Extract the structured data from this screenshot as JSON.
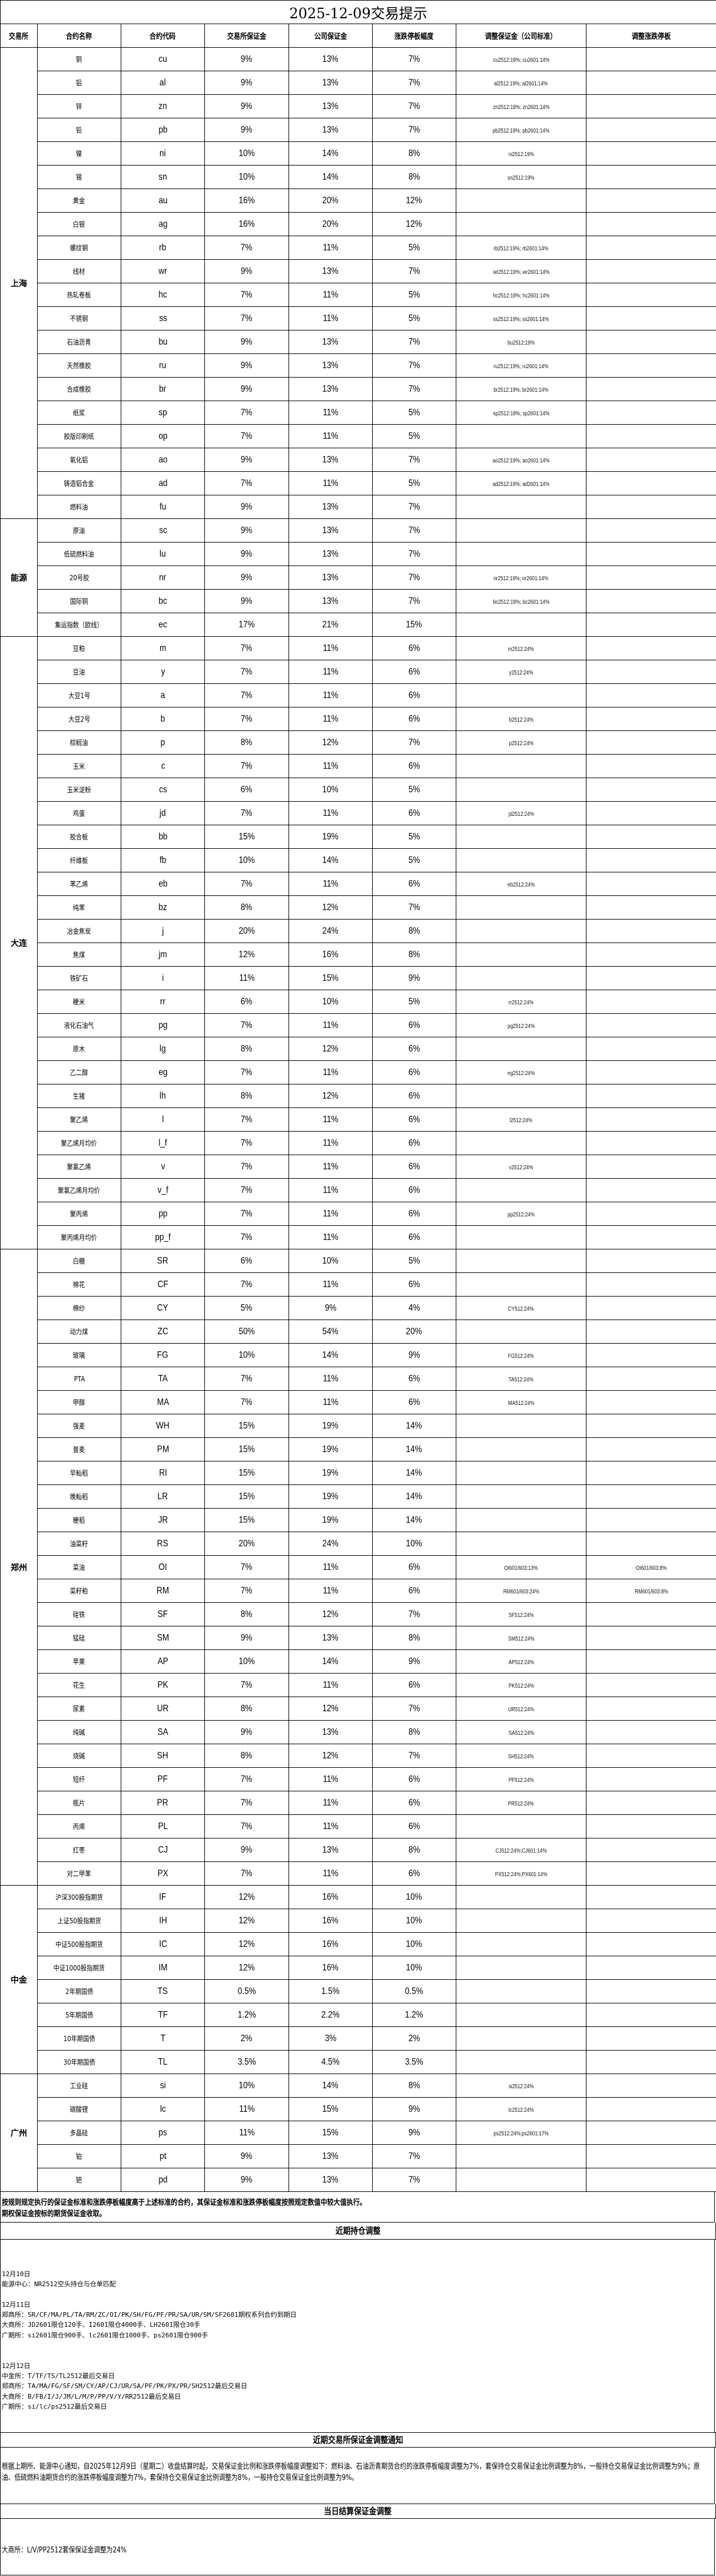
{
  "title": "2025-12-09交易提示",
  "headers": [
    "交易所",
    "合约名称",
    "合约代码",
    "交易所保证金",
    "公司保证金",
    "涨跌停板幅度",
    "调整保证金（公司标准）",
    "调整涨跌停板"
  ],
  "groups": [
    {
      "exchange": "上海",
      "rows": [
        [
          "铜",
          "cu",
          "9%",
          "13%",
          "7%",
          "cu2512:19%; cu2601:14%",
          ""
        ],
        [
          "铝",
          "al",
          "9%",
          "13%",
          "7%",
          "al2512:19%; al2601:14%",
          ""
        ],
        [
          "锌",
          "zn",
          "9%",
          "13%",
          "7%",
          "zn2512:19%; zn2601:14%",
          ""
        ],
        [
          "铅",
          "pb",
          "9%",
          "13%",
          "7%",
          "pb2512:19%; pb2601:14%",
          ""
        ],
        [
          "镍",
          "ni",
          "10%",
          "14%",
          "8%",
          "ni2512:19%",
          ""
        ],
        [
          "锡",
          "sn",
          "10%",
          "14%",
          "8%",
          "sn2512:19%",
          ""
        ],
        [
          "黄金",
          "au",
          "16%",
          "20%",
          "12%",
          "",
          ""
        ],
        [
          "白银",
          "ag",
          "16%",
          "20%",
          "12%",
          "",
          ""
        ],
        [
          "螺纹钢",
          "rb",
          "7%",
          "11%",
          "5%",
          "rb2512:19%; rb2601:14%",
          ""
        ],
        [
          "线材",
          "wr",
          "9%",
          "13%",
          "7%",
          "wr2512:19%; wr2601:14%",
          ""
        ],
        [
          "热轧卷板",
          "hc",
          "7%",
          "11%",
          "5%",
          "hc2512:19%; hc2601:14%",
          ""
        ],
        [
          "不锈钢",
          "ss",
          "7%",
          "11%",
          "5%",
          "ss2512:19%; ss2601:14%",
          ""
        ],
        [
          "石油沥青",
          "bu",
          "9%",
          "13%",
          "7%",
          "bu2512:19%",
          ""
        ],
        [
          "天然橡胶",
          "ru",
          "9%",
          "13%",
          "7%",
          "ru2512:19%; ru2601:14%",
          ""
        ],
        [
          "合成橡胶",
          "br",
          "9%",
          "13%",
          "7%",
          "br2512:19%; br2601:14%",
          ""
        ],
        [
          "纸浆",
          "sp",
          "7%",
          "11%",
          "5%",
          "sp2512:19%; sp2601:14%",
          ""
        ],
        [
          "胶版印刷纸",
          "op",
          "7%",
          "11%",
          "5%",
          "",
          ""
        ],
        [
          "氧化铝",
          "ao",
          "9%",
          "13%",
          "7%",
          "ao2512:19%; ao2601:14%",
          ""
        ],
        [
          "铸造铝合金",
          "ad",
          "7%",
          "11%",
          "5%",
          "ad2512:19%; ad2601:14%",
          ""
        ],
        [
          "燃料油",
          "fu",
          "9%",
          "13%",
          "7%",
          "",
          ""
        ]
      ]
    },
    {
      "exchange": "能源",
      "rows": [
        [
          "原油",
          "sc",
          "9%",
          "13%",
          "7%",
          "",
          ""
        ],
        [
          "低硫燃料油",
          "lu",
          "9%",
          "13%",
          "7%",
          "",
          ""
        ],
        [
          "20号胶",
          "nr",
          "9%",
          "13%",
          "7%",
          "nr2512:19%; nr2601:14%",
          ""
        ],
        [
          "国际铜",
          "bc",
          "9%",
          "13%",
          "7%",
          "bc2512:19%; bc2601:14%",
          ""
        ],
        [
          "集运指数（欧线）",
          "ec",
          "17%",
          "21%",
          "15%",
          "",
          ""
        ]
      ]
    },
    {
      "exchange": "大连",
      "rows": [
        [
          "豆粕",
          "m",
          "7%",
          "11%",
          "6%",
          "m2512:24%",
          ""
        ],
        [
          "豆油",
          "y",
          "7%",
          "11%",
          "6%",
          "y2512:24%",
          ""
        ],
        [
          "大豆1号",
          "a",
          "7%",
          "11%",
          "6%",
          "",
          ""
        ],
        [
          "大豆2号",
          "b",
          "7%",
          "11%",
          "6%",
          "b2512:24%",
          ""
        ],
        [
          "棕榈油",
          "p",
          "8%",
          "12%",
          "7%",
          "p2512:24%",
          ""
        ],
        [
          "玉米",
          "c",
          "7%",
          "11%",
          "6%",
          "",
          ""
        ],
        [
          "玉米淀粉",
          "cs",
          "6%",
          "10%",
          "5%",
          "",
          ""
        ],
        [
          "鸡蛋",
          "jd",
          "7%",
          "11%",
          "6%",
          "jd2512:24%",
          ""
        ],
        [
          "胶合板",
          "bb",
          "15%",
          "19%",
          "5%",
          "",
          ""
        ],
        [
          "纤维板",
          "fb",
          "10%",
          "14%",
          "5%",
          "",
          ""
        ],
        [
          "苯乙烯",
          "eb",
          "7%",
          "11%",
          "6%",
          "eb2512:24%",
          ""
        ],
        [
          "纯苯",
          "bz",
          "8%",
          "12%",
          "7%",
          "",
          ""
        ],
        [
          "冶金焦炭",
          "j",
          "20%",
          "24%",
          "8%",
          "",
          ""
        ],
        [
          "焦煤",
          "jm",
          "12%",
          "16%",
          "8%",
          "",
          ""
        ],
        [
          "铁矿石",
          "i",
          "11%",
          "15%",
          "9%",
          "",
          ""
        ],
        [
          "粳米",
          "rr",
          "6%",
          "10%",
          "5%",
          "rr2512:24%",
          ""
        ],
        [
          "液化石油气",
          "pg",
          "7%",
          "11%",
          "6%",
          "pg2512:24%",
          ""
        ],
        [
          "原木",
          "lg",
          "8%",
          "12%",
          "6%",
          "",
          ""
        ],
        [
          "乙二醇",
          "eg",
          "7%",
          "11%",
          "6%",
          "eg2512:24%",
          ""
        ],
        [
          "生猪",
          "lh",
          "8%",
          "12%",
          "6%",
          "",
          ""
        ],
        [
          "聚乙烯",
          "l",
          "7%",
          "11%",
          "6%",
          "l2512:24%",
          ""
        ],
        [
          "聚乙烯月均价",
          "l_f",
          "7%",
          "11%",
          "6%",
          "",
          ""
        ],
        [
          "聚氯乙烯",
          "v",
          "7%",
          "11%",
          "6%",
          "v2512:24%",
          ""
        ],
        [
          "聚氯乙烯月均价",
          "v_f",
          "7%",
          "11%",
          "6%",
          "",
          ""
        ],
        [
          "聚丙烯",
          "pp",
          "7%",
          "11%",
          "6%",
          "pp2512:24%",
          ""
        ],
        [
          "聚丙烯月均价",
          "pp_f",
          "7%",
          "11%",
          "6%",
          "",
          ""
        ]
      ]
    },
    {
      "exchange": "郑州",
      "rows": [
        [
          "白糖",
          "SR",
          "6%",
          "10%",
          "5%",
          "",
          ""
        ],
        [
          "棉花",
          "CF",
          "7%",
          "11%",
          "6%",
          "",
          ""
        ],
        [
          "棉纱",
          "CY",
          "5%",
          "9%",
          "4%",
          "CY512:24%",
          ""
        ],
        [
          "动力煤",
          "ZC",
          "50%",
          "54%",
          "20%",
          "",
          ""
        ],
        [
          "玻璃",
          "FG",
          "10%",
          "14%",
          "9%",
          "FG512:24%",
          ""
        ],
        [
          "PTA",
          "TA",
          "7%",
          "11%",
          "6%",
          "TA512:24%",
          ""
        ],
        [
          "甲醇",
          "MA",
          "7%",
          "11%",
          "6%",
          "MA512:24%",
          ""
        ],
        [
          "强麦",
          "WH",
          "15%",
          "19%",
          "14%",
          "",
          ""
        ],
        [
          "普麦",
          "PM",
          "15%",
          "19%",
          "14%",
          "",
          ""
        ],
        [
          "早籼稻",
          "RI",
          "15%",
          "19%",
          "14%",
          "",
          ""
        ],
        [
          "晚籼稻",
          "LR",
          "15%",
          "19%",
          "14%",
          "",
          ""
        ],
        [
          "粳稻",
          "JR",
          "15%",
          "19%",
          "14%",
          "",
          ""
        ],
        [
          "油菜籽",
          "RS",
          "20%",
          "24%",
          "10%",
          "",
          ""
        ],
        [
          "菜油",
          "OI",
          "7%",
          "11%",
          "6%",
          "OI601/603:13%",
          "OI601/603:8%"
        ],
        [
          "菜籽粕",
          "RM",
          "7%",
          "11%",
          "6%",
          "RM601/603:24%",
          "RM601/603:8%"
        ],
        [
          "硅铁",
          "SF",
          "8%",
          "12%",
          "7%",
          "SF512:24%",
          ""
        ],
        [
          "锰硅",
          "SM",
          "9%",
          "13%",
          "8%",
          "SM512:24%",
          ""
        ],
        [
          "苹果",
          "AP",
          "10%",
          "14%",
          "9%",
          "AP512:24%",
          ""
        ],
        [
          "花生",
          "PK",
          "7%",
          "11%",
          "6%",
          "PK512:24%",
          ""
        ],
        [
          "尿素",
          "UR",
          "8%",
          "12%",
          "7%",
          "UR512:24%",
          ""
        ],
        [
          "纯碱",
          "SA",
          "9%",
          "13%",
          "8%",
          "SA512:24%",
          ""
        ],
        [
          "烧碱",
          "SH",
          "8%",
          "12%",
          "7%",
          "SH512:24%",
          ""
        ],
        [
          "短纤",
          "PF",
          "7%",
          "11%",
          "6%",
          "PF512:24%",
          ""
        ],
        [
          "瓶片",
          "PR",
          "7%",
          "11%",
          "6%",
          "PR512:24%",
          ""
        ],
        [
          "丙烯",
          "PL",
          "7%",
          "11%",
          "6%",
          "",
          ""
        ],
        [
          "红枣",
          "CJ",
          "9%",
          "13%",
          "8%",
          "CJ512:24%;CJ601:14%",
          ""
        ],
        [
          "对二甲苯",
          "PX",
          "7%",
          "11%",
          "6%",
          "PX512:24%;PX601:14%",
          ""
        ]
      ]
    },
    {
      "exchange": "中金",
      "rows": [
        [
          "沪深300股指期货",
          "IF",
          "12%",
          "16%",
          "10%",
          "",
          ""
        ],
        [
          "上证50股指期货",
          "IH",
          "12%",
          "16%",
          "10%",
          "",
          ""
        ],
        [
          "中证500股指期货",
          "IC",
          "12%",
          "16%",
          "10%",
          "",
          ""
        ],
        [
          "中证1000股指期货",
          "IM",
          "12%",
          "16%",
          "10%",
          "",
          ""
        ],
        [
          "2年期国债",
          "TS",
          "0.5%",
          "1.5%",
          "0.5%",
          "",
          ""
        ],
        [
          "5年期国债",
          "TF",
          "1.2%",
          "2.2%",
          "1.2%",
          "",
          ""
        ],
        [
          "10年期国债",
          "T",
          "2%",
          "3%",
          "2%",
          "",
          ""
        ],
        [
          "30年期国债",
          "TL",
          "3.5%",
          "4.5%",
          "3.5%",
          "",
          ""
        ]
      ]
    },
    {
      "exchange": "广州",
      "rows": [
        [
          "工业硅",
          "si",
          "10%",
          "14%",
          "8%",
          "si2512:24%",
          ""
        ],
        [
          "碳酸锂",
          "lc",
          "11%",
          "15%",
          "9%",
          "lc2512:24%",
          ""
        ],
        [
          "多晶硅",
          "ps",
          "11%",
          "15%",
          "9%",
          "ps2512:24%;ps2601:17%",
          ""
        ],
        [
          "铂",
          "pt",
          "9%",
          "13%",
          "7%",
          "",
          ""
        ],
        [
          "钯",
          "pd",
          "9%",
          "13%",
          "7%",
          "",
          ""
        ]
      ]
    }
  ],
  "notes": [
    "按规则规定执行的保证金标准和涨跌停板幅度高于上述标准的合约，其保证金标准和涨跌停板幅度按照规定数值中较大值执行。",
    "期权保证金按标的期货保证金收取。"
  ],
  "positions": {
    "title": "近期持仓调整",
    "lines": [
      "12月10日",
      "能源中心：NR2512空头持仓与仓单匹配",
      "",
      "12月11日",
      "郑商所：SR/CF/MA/PL/TA/RM/ZC/OI/PK/SH/FG/PF/PR/SA/UR/SM/SF2601期权系列合约到期日",
      "大商所：JD2601限仓120手、I2601限仓4000手、LH2601限仓30手",
      "广期所：si2601限仓900手、lc2601限仓1000手、ps2601限仓900手",
      "",
      "",
      "12月12日",
      "中金所：T/TF/TS/TL2512最后交易日",
      "郑商所：TA/MA/FG/SF/SM/CY/AP/CJ/UR/SA/PF/PK/PX/PR/SH2512最后交易日",
      "大商所：B/FB/I/J/JM/L/M/P/PP/V/Y/RR2512最后交易日",
      "广期所：si/lc/ps2512最后交易日"
    ]
  },
  "notice": {
    "title": "近期交易所保证金调整通知",
    "text": "根据上期所、能源中心通知，自2025年12月9日（星期二）收盘结算时起，交易保证金比例和涨跌停板幅度调整如下：燃料油、石油沥青期货合约的涨跌停板幅度调整为7%，套保持仓交易保证金比例调整为8%，一般持仓交易保证金比例调整为9%；原油、低硫燃料油期货合约的涨跌停板幅度调整为7%，套保持仓交易保证金比例调整为8%，一般持仓交易保证金比例调整为9%。"
  },
  "settlement": {
    "title": "当日结算保证金调整",
    "text": "大商所：L/V/PP2512套保保证金调整为24%"
  }
}
